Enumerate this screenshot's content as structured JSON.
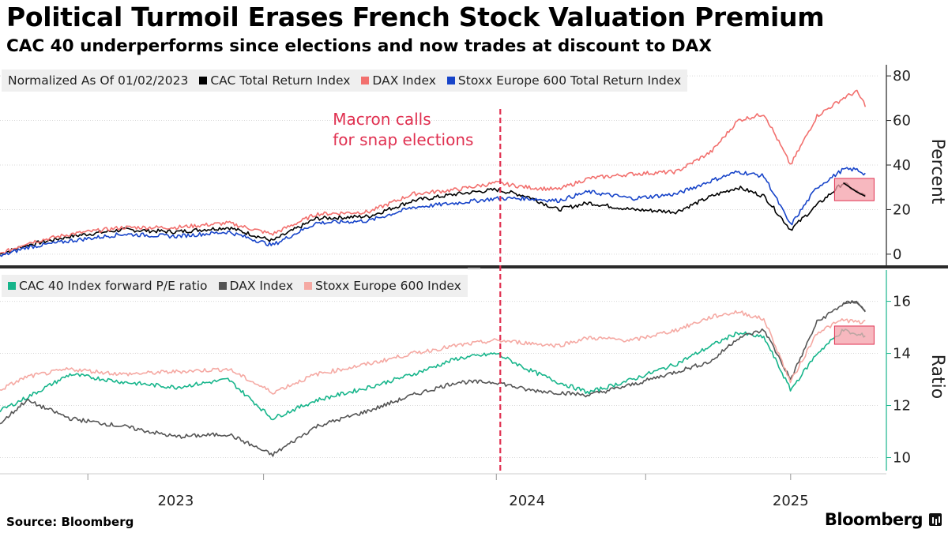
{
  "title": "Political Turmoil Erases French Stock Valuation Premium",
  "subtitle": "CAC 40 underperforms since elections and now trades at discount to DAX",
  "source": "Source: Bloomberg",
  "brand": "Bloomberg",
  "colors": {
    "cac_return": "#000000",
    "dax_top": "#f2706e",
    "stoxx_return": "#1744c9",
    "cac_pe": "#17b58b",
    "dax_pe": "#555555",
    "stoxx_pe": "#f5a9a3",
    "annotation": "#e03050",
    "highlight_fill": "#f4a0aa",
    "highlight_stroke": "#e03050"
  },
  "legend_top": {
    "prefix": "Normalized As Of 01/02/2023",
    "items": [
      "CAC Total Return Index",
      "DAX Index",
      "Stoxx Europe 600 Total Return Index"
    ]
  },
  "legend_bottom": {
    "items": [
      "CAC 40 Index forward P/E ratio",
      "DAX Index",
      "Stoxx Europe 600 Index"
    ]
  },
  "chart_data": [
    {
      "type": "line",
      "title": "Normalized As Of 01/02/2023",
      "ylabel": "Percent",
      "ylim": [
        -5,
        85
      ],
      "yticks": [
        0,
        20,
        40,
        60,
        80
      ],
      "x_tick_labels": [
        "2023",
        "2024",
        "2025"
      ],
      "x_range": [
        "2022-10",
        "2025-06"
      ],
      "series": [
        {
          "name": "CAC Total Return Index",
          "color": "#000000",
          "points": [
            [
              0,
              0
            ],
            [
              0.03,
              4
            ],
            [
              0.08,
              8
            ],
            [
              0.14,
              11
            ],
            [
              0.2,
              10
            ],
            [
              0.26,
              12
            ],
            [
              0.31,
              6
            ],
            [
              0.36,
              16
            ],
            [
              0.42,
              17
            ],
            [
              0.47,
              24
            ],
            [
              0.52,
              27
            ],
            [
              0.565,
              29
            ],
            [
              0.6,
              26
            ],
            [
              0.635,
              20
            ],
            [
              0.67,
              23
            ],
            [
              0.72,
              20
            ],
            [
              0.77,
              19
            ],
            [
              0.81,
              26
            ],
            [
              0.84,
              30
            ],
            [
              0.87,
              26
            ],
            [
              0.9,
              11
            ],
            [
              0.93,
              22
            ],
            [
              0.96,
              32
            ],
            [
              0.975,
              28
            ],
            [
              0.985,
              26
            ]
          ]
        },
        {
          "name": "DAX Index",
          "color": "#f2706e",
          "points": [
            [
              0,
              0
            ],
            [
              0.03,
              5
            ],
            [
              0.08,
              9
            ],
            [
              0.14,
              12
            ],
            [
              0.2,
              12
            ],
            [
              0.26,
              14
            ],
            [
              0.31,
              9
            ],
            [
              0.36,
              18
            ],
            [
              0.42,
              19
            ],
            [
              0.47,
              27
            ],
            [
              0.52,
              29
            ],
            [
              0.565,
              32
            ],
            [
              0.6,
              30
            ],
            [
              0.635,
              29
            ],
            [
              0.67,
              34
            ],
            [
              0.72,
              36
            ],
            [
              0.77,
              37
            ],
            [
              0.81,
              46
            ],
            [
              0.84,
              60
            ],
            [
              0.87,
              63
            ],
            [
              0.9,
              40
            ],
            [
              0.93,
              62
            ],
            [
              0.96,
              70
            ],
            [
              0.975,
              73
            ],
            [
              0.985,
              67
            ]
          ]
        },
        {
          "name": "Stoxx Europe 600 Total Return Index",
          "color": "#1744c9",
          "points": [
            [
              0,
              -1
            ],
            [
              0.03,
              3
            ],
            [
              0.08,
              6
            ],
            [
              0.14,
              9
            ],
            [
              0.2,
              8
            ],
            [
              0.26,
              10
            ],
            [
              0.31,
              4
            ],
            [
              0.36,
              14
            ],
            [
              0.42,
              15
            ],
            [
              0.47,
              21
            ],
            [
              0.52,
              23
            ],
            [
              0.565,
              25
            ],
            [
              0.6,
              25
            ],
            [
              0.635,
              24
            ],
            [
              0.67,
              28
            ],
            [
              0.72,
              25
            ],
            [
              0.77,
              27
            ],
            [
              0.81,
              33
            ],
            [
              0.84,
              37
            ],
            [
              0.87,
              35
            ],
            [
              0.9,
              13
            ],
            [
              0.93,
              30
            ],
            [
              0.96,
              38
            ],
            [
              0.975,
              38
            ],
            [
              0.985,
              36
            ]
          ]
        }
      ],
      "highlight": {
        "x": [
          0.95,
          0.995
        ],
        "y": [
          24,
          34
        ]
      }
    },
    {
      "type": "line",
      "title": "CAC 40 Index forward P/E ratio",
      "ylabel": "Ratio",
      "ylim": [
        9.5,
        17.2
      ],
      "yticks": [
        10,
        12,
        14,
        16
      ],
      "x_tick_labels": [
        "2023",
        "2024",
        "2025"
      ],
      "x_range": [
        "2022-10",
        "2025-06"
      ],
      "series": [
        {
          "name": "CAC 40 Index forward P/E ratio",
          "color": "#17b58b",
          "points": [
            [
              0,
              11.8
            ],
            [
              0.03,
              12.3
            ],
            [
              0.08,
              13.2
            ],
            [
              0.14,
              12.9
            ],
            [
              0.2,
              12.7
            ],
            [
              0.26,
              13.0
            ],
            [
              0.31,
              11.5
            ],
            [
              0.36,
              12.2
            ],
            [
              0.42,
              12.7
            ],
            [
              0.47,
              13.2
            ],
            [
              0.52,
              13.8
            ],
            [
              0.565,
              14.0
            ],
            [
              0.6,
              13.4
            ],
            [
              0.635,
              12.9
            ],
            [
              0.67,
              12.5
            ],
            [
              0.72,
              13.0
            ],
            [
              0.77,
              13.6
            ],
            [
              0.81,
              14.3
            ],
            [
              0.84,
              14.8
            ],
            [
              0.87,
              14.6
            ],
            [
              0.9,
              12.6
            ],
            [
              0.93,
              14.0
            ],
            [
              0.96,
              14.9
            ],
            [
              0.975,
              14.7
            ],
            [
              0.985,
              14.7
            ]
          ]
        },
        {
          "name": "DAX Index",
          "color": "#555555",
          "points": [
            [
              0,
              11.3
            ],
            [
              0.03,
              12.2
            ],
            [
              0.08,
              11.5
            ],
            [
              0.14,
              11.2
            ],
            [
              0.2,
              10.8
            ],
            [
              0.26,
              10.9
            ],
            [
              0.31,
              10.1
            ],
            [
              0.36,
              11.2
            ],
            [
              0.42,
              11.8
            ],
            [
              0.47,
              12.4
            ],
            [
              0.52,
              12.9
            ],
            [
              0.565,
              12.9
            ],
            [
              0.6,
              12.6
            ],
            [
              0.635,
              12.5
            ],
            [
              0.67,
              12.4
            ],
            [
              0.72,
              12.8
            ],
            [
              0.77,
              13.3
            ],
            [
              0.81,
              13.7
            ],
            [
              0.84,
              14.6
            ],
            [
              0.87,
              14.9
            ],
            [
              0.9,
              13.0
            ],
            [
              0.93,
              15.2
            ],
            [
              0.96,
              15.9
            ],
            [
              0.975,
              16.0
            ],
            [
              0.985,
              15.6
            ]
          ]
        },
        {
          "name": "Stoxx Europe 600 Index",
          "color": "#f5a9a3",
          "points": [
            [
              0,
              12.6
            ],
            [
              0.03,
              13.1
            ],
            [
              0.08,
              13.4
            ],
            [
              0.14,
              13.2
            ],
            [
              0.2,
              13.3
            ],
            [
              0.26,
              13.4
            ],
            [
              0.31,
              12.5
            ],
            [
              0.36,
              13.2
            ],
            [
              0.42,
              13.6
            ],
            [
              0.47,
              14.0
            ],
            [
              0.52,
              14.3
            ],
            [
              0.565,
              14.5
            ],
            [
              0.6,
              14.4
            ],
            [
              0.635,
              14.3
            ],
            [
              0.67,
              14.6
            ],
            [
              0.72,
              14.5
            ],
            [
              0.77,
              14.9
            ],
            [
              0.81,
              15.4
            ],
            [
              0.84,
              15.6
            ],
            [
              0.87,
              15.3
            ],
            [
              0.9,
              12.9
            ],
            [
              0.93,
              14.8
            ],
            [
              0.96,
              15.3
            ],
            [
              0.975,
              15.2
            ],
            [
              0.985,
              15.2
            ]
          ]
        }
      ],
      "highlight": {
        "x": [
          0.95,
          0.995
        ],
        "y": [
          14.35,
          15.05
        ]
      }
    }
  ],
  "event_line": {
    "x": 0.565,
    "label_line1": "Macron calls",
    "label_line2": "for snap elections"
  }
}
